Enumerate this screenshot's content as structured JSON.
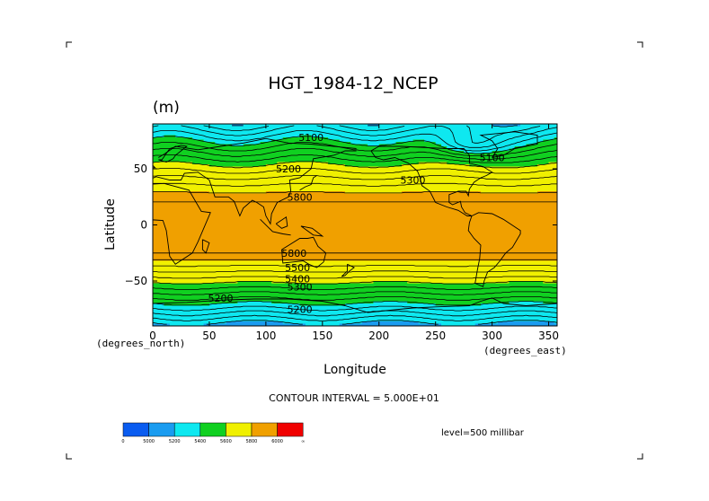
{
  "chart_data": {
    "type": "heatmap",
    "title": "HGT_1984-12_NCEP",
    "units": "(m)",
    "xlabel": "Longitude",
    "ylabel": "Latitude",
    "x_units": "(degrees_east)",
    "y_units": "(degrees_north)",
    "xlim": [
      0,
      357.5
    ],
    "ylim": [
      -90,
      90
    ],
    "x_ticks": [
      0,
      50,
      100,
      150,
      200,
      250,
      300,
      350
    ],
    "y_ticks": [
      -50,
      0,
      50
    ],
    "contour_interval_text": "CONTOUR INTERVAL = 5.000E+01",
    "level_text": "level=500 millibar",
    "levels": [
      5000,
      5200,
      5400,
      5600,
      5800,
      6000
    ],
    "colorbar": {
      "labels": [
        "0",
        "5000",
        "5200",
        "5400",
        "5600",
        "5800",
        "6000",
        "∞"
      ],
      "colors": [
        "#0a5cf0",
        "#1a9cf0",
        "#0ee8f0",
        "#10d020",
        "#f0f000",
        "#f0a000",
        "#f00000"
      ]
    },
    "contour_labels": [
      {
        "text": "5100",
        "lon": 140,
        "lat": 78
      },
      {
        "text": "5200",
        "lon": 120,
        "lat": 50
      },
      {
        "text": "5800",
        "lon": 130,
        "lat": 25
      },
      {
        "text": "5100",
        "lon": 300,
        "lat": 60
      },
      {
        "text": "5300",
        "lon": 230,
        "lat": 40
      },
      {
        "text": "5800",
        "lon": 125,
        "lat": -25
      },
      {
        "text": "5400",
        "lon": 128,
        "lat": -48
      },
      {
        "text": "5500",
        "lon": 128,
        "lat": -38
      },
      {
        "text": "5300",
        "lon": 130,
        "lat": -55
      },
      {
        "text": "5200",
        "lon": 60,
        "lat": -65
      },
      {
        "text": "5200",
        "lon": 130,
        "lat": -75
      }
    ]
  }
}
